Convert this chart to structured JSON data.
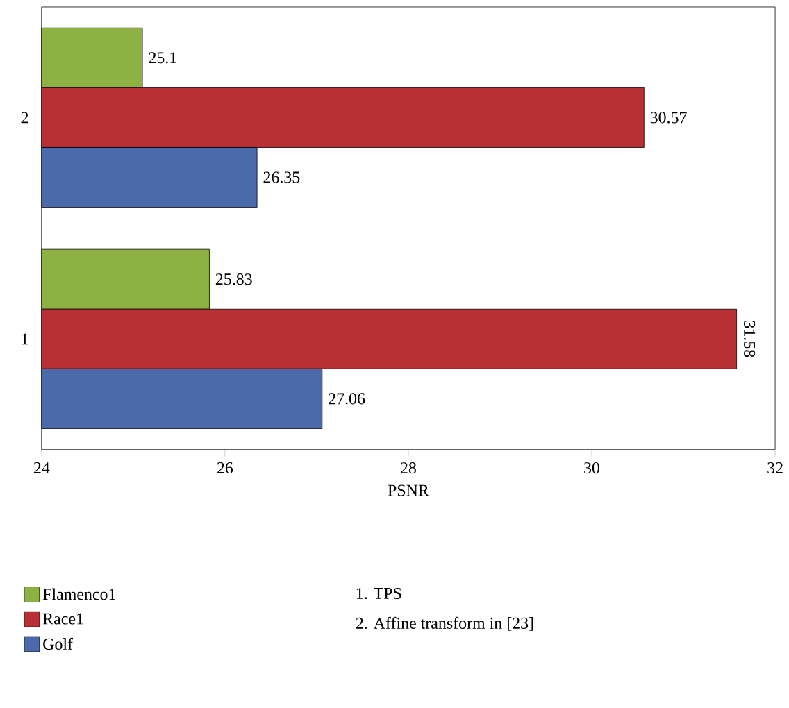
{
  "chart_data": {
    "type": "bar",
    "orientation": "horizontal",
    "xlabel": "PSNR",
    "categories": [
      "2",
      "1"
    ],
    "series": [
      {
        "name": "Flamenco1",
        "color": "#8db243",
        "values": [
          25.1,
          25.83
        ]
      },
      {
        "name": "Race1",
        "color": "#b83034",
        "values": [
          30.57,
          31.58
        ]
      },
      {
        "name": "Golf",
        "color": "#4a6aab",
        "values": [
          26.35,
          27.06
        ]
      }
    ],
    "xlim": [
      24,
      32
    ],
    "xticks": [
      24,
      26,
      28,
      30,
      32
    ],
    "data_labels": true,
    "legend": "bottom",
    "grid": false,
    "annotations": [
      "1.  TPS",
      "2.  Affine transform in [23]"
    ]
  }
}
